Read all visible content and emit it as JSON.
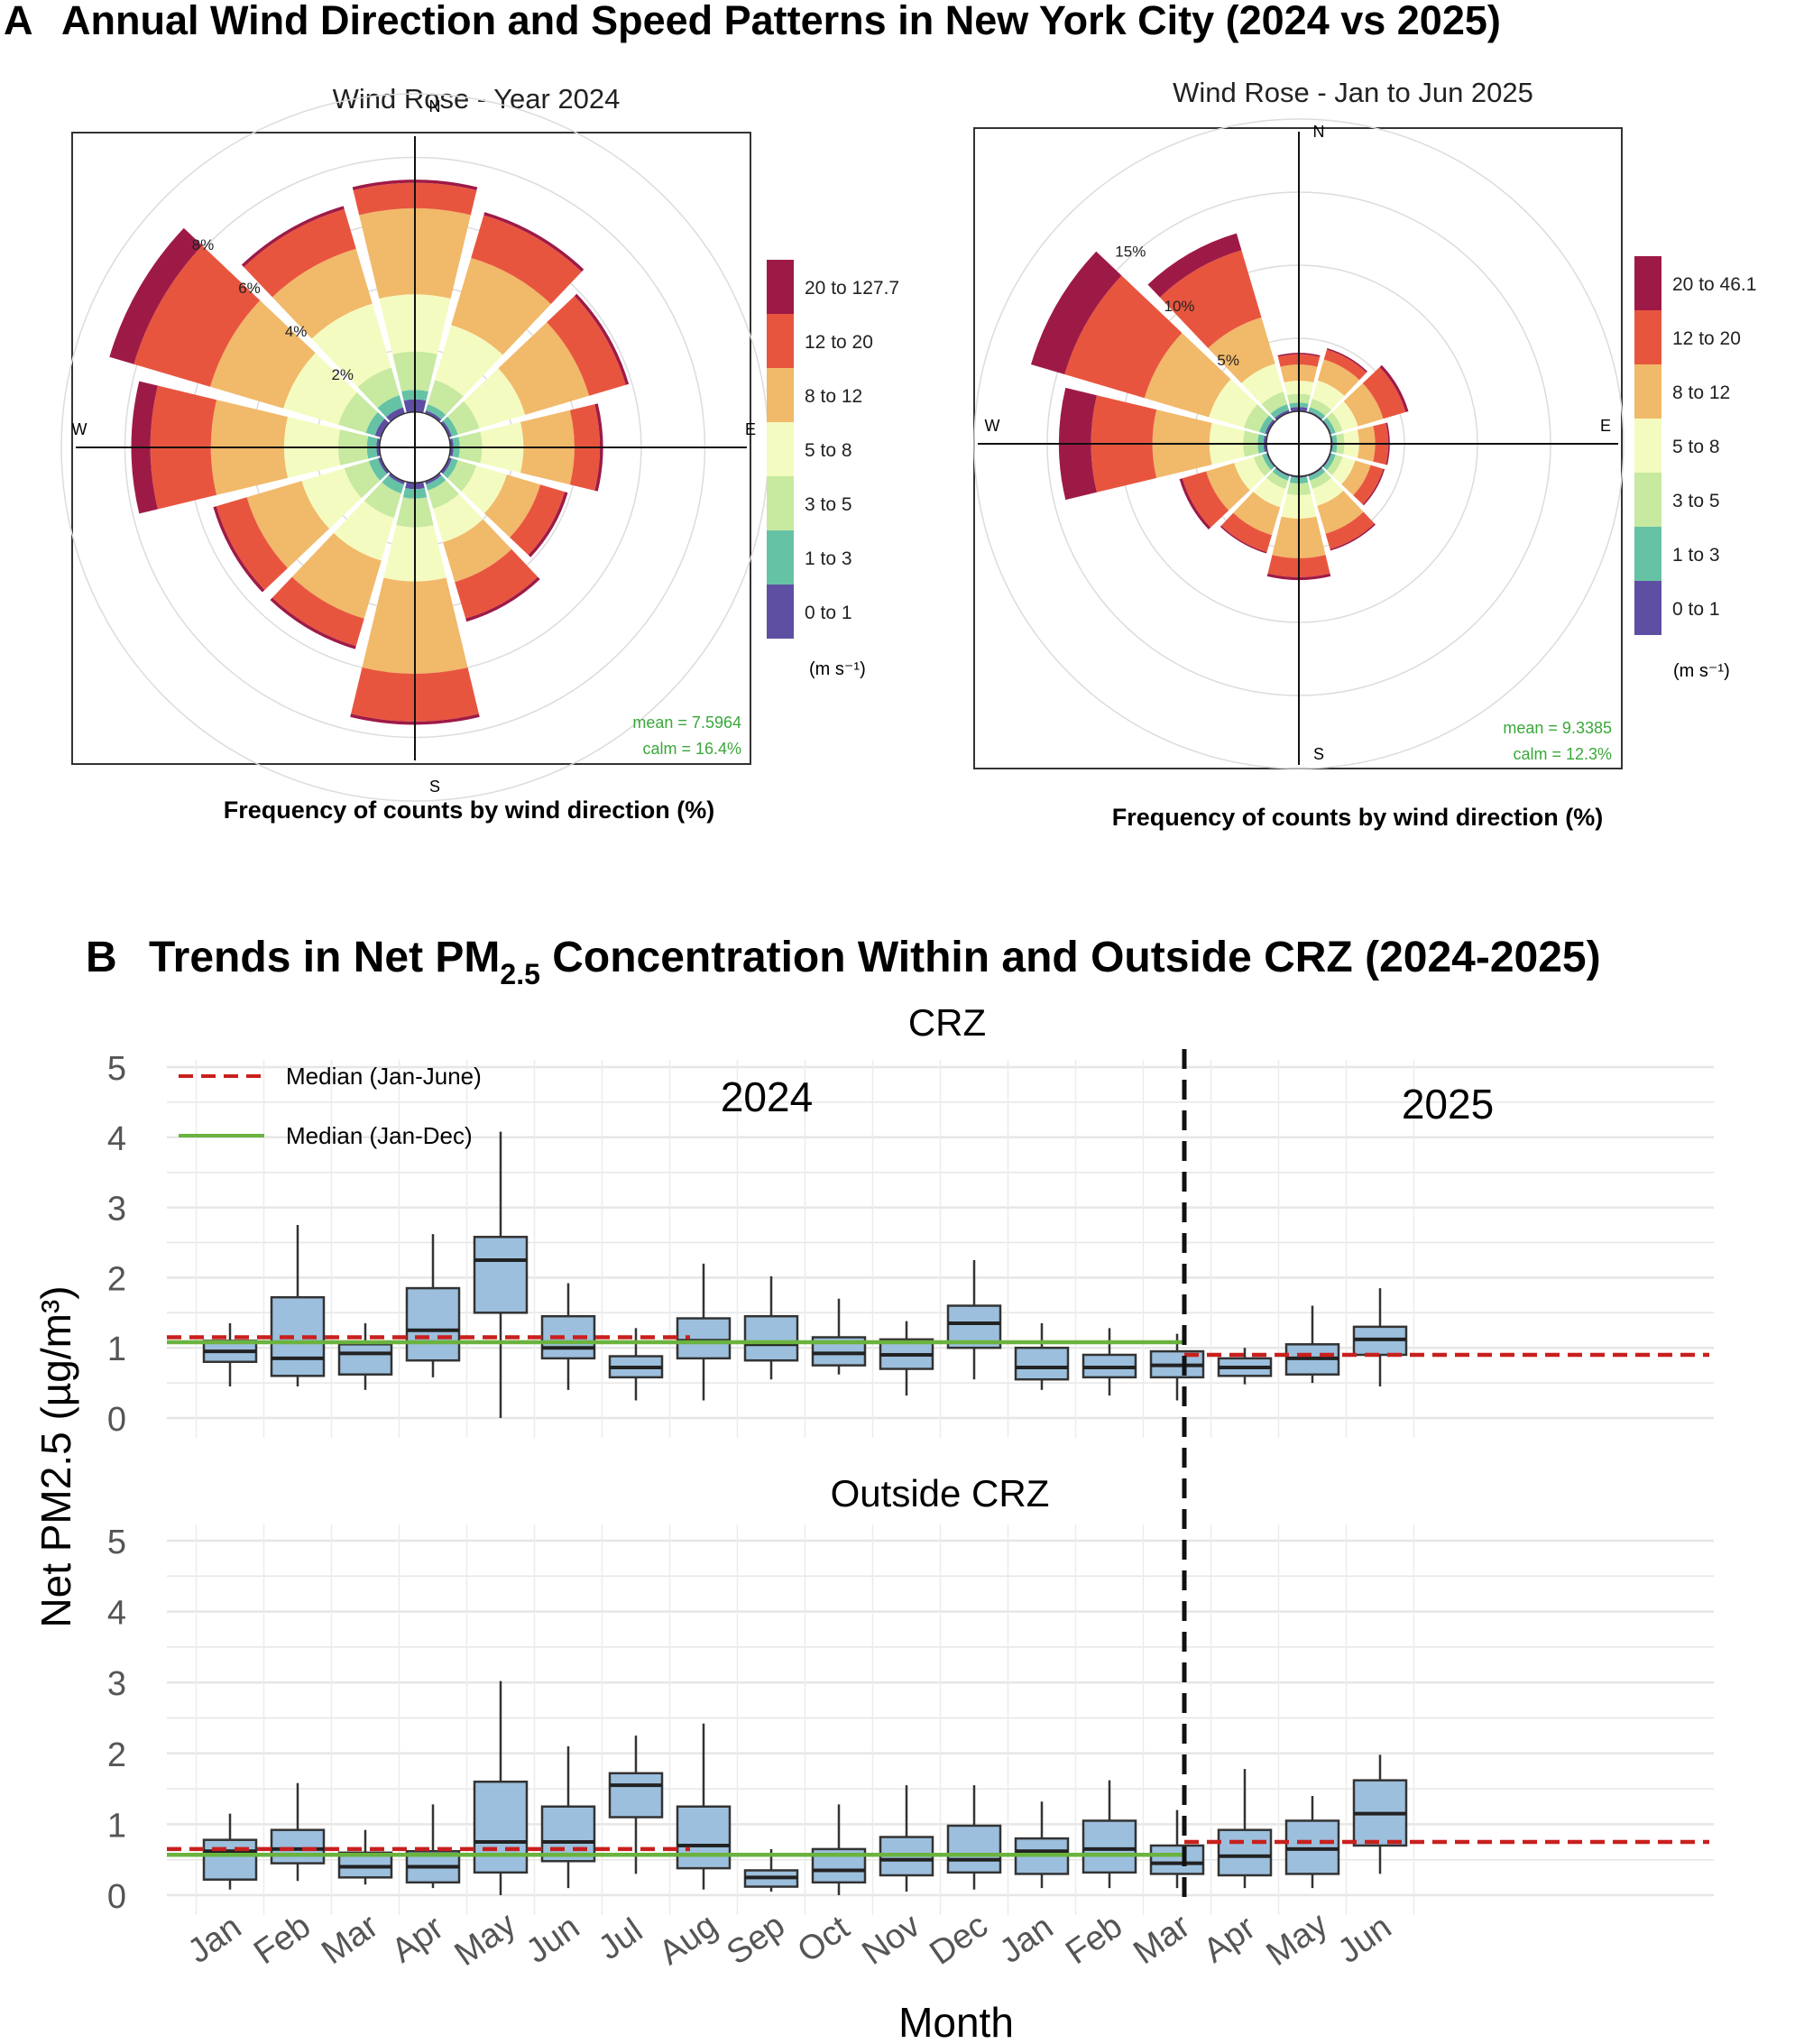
{
  "panel_a": {
    "letter": "A",
    "title": "Annual Wind Direction and Speed Patterns in New York City (2024 vs 2025)"
  },
  "panel_b": {
    "letter": "B",
    "title_pre": "Trends in Net PM",
    "title_sub": "2.5",
    "title_post": " Concentration Within and Outside CRZ (2024-2025)"
  },
  "wind_common": {
    "compass": [
      "N",
      "E",
      "S",
      "W"
    ],
    "xlabel": "Frequency of counts by wind direction (%)",
    "legend_unit": "(m s⁻¹)",
    "palette": [
      "#5e4fa2",
      "#66c2a5",
      "#c7e9a0",
      "#f4fbc0",
      "#f1b96a",
      "#e8553f",
      "#9e1a46"
    ]
  },
  "chart_data": [
    {
      "type": "windrose",
      "title": "Wind Rose - Year 2024",
      "speed_bins": [
        "0 to 1",
        "1 to 3",
        "3 to 5",
        "5 to 8",
        "8 to 12",
        "12 to 20",
        "20 to 127.7"
      ],
      "ring_labels": [
        "2%",
        "4%",
        "6%",
        "8%"
      ],
      "ring_values": [
        2,
        4,
        6,
        8
      ],
      "rmax": 10,
      "mean_text": "mean = 7.5964",
      "calm_text": "calm = 16.4%",
      "directions": [
        0,
        30,
        60,
        90,
        120,
        150,
        180,
        210,
        240,
        270,
        300,
        330
      ],
      "cumulative": [
        [
          0.4,
          0.7,
          1.9,
          3.7,
          6.4,
          7.2,
          7.3
        ],
        [
          0.1,
          0.3,
          1.1,
          2.9,
          5.1,
          6.5,
          6.6
        ],
        [
          0.1,
          0.3,
          1.0,
          2.5,
          4.6,
          5.8,
          5.9
        ],
        [
          0.1,
          0.3,
          1.0,
          2.3,
          3.9,
          4.7,
          4.8
        ],
        [
          0.1,
          0.3,
          0.9,
          1.9,
          3.0,
          3.8,
          3.9
        ],
        [
          0.1,
          0.3,
          0.9,
          2.0,
          3.3,
          4.5,
          4.6
        ],
        [
          0.2,
          0.5,
          1.4,
          3.1,
          6.0,
          7.5,
          7.6
        ],
        [
          0.1,
          0.4,
          1.2,
          2.6,
          4.5,
          5.4,
          5.5
        ],
        [
          0.1,
          0.4,
          1.2,
          2.6,
          4.4,
          5.4,
          5.5
        ],
        [
          0.1,
          0.4,
          1.3,
          3.0,
          5.3,
          7.2,
          7.8
        ],
        [
          0.2,
          0.5,
          1.4,
          3.2,
          5.6,
          8.1,
          8.9
        ],
        [
          0.2,
          0.6,
          1.5,
          3.6,
          5.4,
          6.7,
          6.8
        ]
      ]
    },
    {
      "type": "windrose",
      "title": "Wind Rose - Jan to Jun 2025",
      "speed_bins": [
        "0 to 1",
        "1 to 3",
        "3 to 5",
        "5 to 8",
        "8 to 12",
        "12 to 20",
        "20 to 46.1"
      ],
      "ring_labels": [
        "5%",
        "10%",
        "15%"
      ],
      "ring_values": [
        5,
        10,
        15
      ],
      "rmax": 20,
      "mean_text": "mean = 9.3385",
      "calm_text": "calm = 12.3%",
      "directions": [
        0,
        30,
        60,
        90,
        120,
        150,
        180,
        210,
        240,
        270,
        300,
        330
      ],
      "cumulative": [
        [
          0.3,
          0.6,
          1.2,
          2.1,
          3.2,
          3.9,
          4.0
        ],
        [
          0.1,
          0.4,
          1.0,
          2.3,
          3.8,
          4.5,
          4.6
        ],
        [
          0.1,
          0.4,
          0.9,
          2.0,
          3.8,
          5.4,
          5.6
        ],
        [
          0.1,
          0.4,
          0.9,
          1.9,
          3.0,
          3.9,
          4.0
        ],
        [
          0.1,
          0.4,
          0.9,
          1.8,
          2.9,
          3.8,
          3.9
        ],
        [
          0.1,
          0.4,
          1.0,
          2.2,
          4.2,
          5.3,
          5.4
        ],
        [
          0.1,
          0.5,
          1.3,
          2.9,
          5.6,
          6.9,
          7.1
        ],
        [
          0.1,
          0.4,
          1.0,
          2.3,
          4.3,
          5.5,
          5.6
        ],
        [
          0.1,
          0.4,
          1.0,
          2.4,
          4.4,
          6.1,
          6.3
        ],
        [
          0.2,
          0.6,
          1.6,
          3.9,
          7.8,
          12.0,
          14.2
        ],
        [
          0.2,
          0.6,
          1.7,
          4.2,
          8.8,
          14.5,
          16.9
        ],
        [
          0.2,
          0.6,
          1.5,
          3.5,
          6.8,
          11.6,
          12.8
        ]
      ]
    },
    {
      "type": "boxplot",
      "panel_title": "CRZ",
      "year_labels": [
        "2024",
        "2025"
      ],
      "legend": [
        "Median  (Jan-June)",
        "Median  (Jan-Dec)"
      ],
      "ylabel": "Net PM2.5 (µg/m³)",
      "ylim": [
        0,
        5
      ],
      "yticks": [
        "0",
        "1",
        "2",
        "3",
        "4",
        "5"
      ],
      "ref_lines": {
        "jan_jun_2024": 1.15,
        "jan_dec_2024": 1.08,
        "jan_jun_2025": 0.9
      },
      "boxes": [
        {
          "month": "Jan",
          "year": 2024,
          "min": 0.45,
          "q1": 0.8,
          "median": 0.95,
          "q3": 1.1,
          "max": 1.35
        },
        {
          "month": "Feb",
          "year": 2024,
          "min": 0.45,
          "q1": 0.6,
          "median": 0.85,
          "q3": 1.72,
          "max": 2.75
        },
        {
          "month": "Mar",
          "year": 2024,
          "min": 0.4,
          "q1": 0.62,
          "median": 0.92,
          "q3": 1.05,
          "max": 1.35
        },
        {
          "month": "Apr",
          "year": 2024,
          "min": 0.58,
          "q1": 0.82,
          "median": 1.25,
          "q3": 1.85,
          "max": 2.62
        },
        {
          "month": "May",
          "year": 2024,
          "min": 0.0,
          "q1": 1.5,
          "median": 2.25,
          "q3": 2.58,
          "max": 4.08
        },
        {
          "month": "Jun",
          "year": 2024,
          "min": 0.4,
          "q1": 0.85,
          "median": 1.0,
          "q3": 1.45,
          "max": 1.92
        },
        {
          "month": "Jul",
          "year": 2024,
          "min": 0.25,
          "q1": 0.58,
          "median": 0.72,
          "q3": 0.88,
          "max": 1.28
        },
        {
          "month": "Aug",
          "year": 2024,
          "min": 0.25,
          "q1": 0.85,
          "median": 1.1,
          "q3": 1.42,
          "max": 2.2
        },
        {
          "month": "Sep",
          "year": 2024,
          "min": 0.55,
          "q1": 0.82,
          "median": 1.05,
          "q3": 1.45,
          "max": 2.02
        },
        {
          "month": "Oct",
          "year": 2024,
          "min": 0.62,
          "q1": 0.75,
          "median": 0.92,
          "q3": 1.15,
          "max": 1.7
        },
        {
          "month": "Nov",
          "year": 2024,
          "min": 0.32,
          "q1": 0.7,
          "median": 0.9,
          "q3": 1.12,
          "max": 1.38
        },
        {
          "month": "Dec",
          "year": 2024,
          "min": 0.55,
          "q1": 1.0,
          "median": 1.35,
          "q3": 1.6,
          "max": 2.25
        },
        {
          "month": "Jan",
          "year": 2025,
          "min": 0.4,
          "q1": 0.55,
          "median": 0.72,
          "q3": 1.0,
          "max": 1.35
        },
        {
          "month": "Feb",
          "year": 2025,
          "min": 0.32,
          "q1": 0.58,
          "median": 0.72,
          "q3": 0.9,
          "max": 1.28
        },
        {
          "month": "Mar",
          "year": 2025,
          "min": 0.25,
          "q1": 0.58,
          "median": 0.75,
          "q3": 0.95,
          "max": 1.2
        },
        {
          "month": "Apr",
          "year": 2025,
          "min": 0.48,
          "q1": 0.6,
          "median": 0.72,
          "q3": 0.85,
          "max": 1.0
        },
        {
          "month": "May",
          "year": 2025,
          "min": 0.5,
          "q1": 0.62,
          "median": 0.85,
          "q3": 1.05,
          "max": 1.6
        },
        {
          "month": "Jun",
          "year": 2025,
          "min": 0.45,
          "q1": 0.9,
          "median": 1.12,
          "q3": 1.3,
          "max": 1.85
        }
      ]
    },
    {
      "type": "boxplot",
      "panel_title": "Outside CRZ",
      "xlabel": "Month",
      "ylim": [
        0,
        5
      ],
      "yticks": [
        "0",
        "1",
        "2",
        "3",
        "4",
        "5"
      ],
      "ref_lines": {
        "jan_jun_2024": 0.65,
        "jan_dec_2024": 0.57,
        "jan_jun_2025": 0.75
      },
      "boxes": [
        {
          "month": "Jan",
          "year": 2024,
          "min": 0.08,
          "q1": 0.22,
          "median": 0.62,
          "q3": 0.78,
          "max": 1.15
        },
        {
          "month": "Feb",
          "year": 2024,
          "min": 0.2,
          "q1": 0.45,
          "median": 0.65,
          "q3": 0.92,
          "max": 1.58
        },
        {
          "month": "Mar",
          "year": 2024,
          "min": 0.15,
          "q1": 0.25,
          "median": 0.4,
          "q3": 0.6,
          "max": 0.92
        },
        {
          "month": "Apr",
          "year": 2024,
          "min": 0.1,
          "q1": 0.18,
          "median": 0.4,
          "q3": 0.62,
          "max": 1.28
        },
        {
          "month": "May",
          "year": 2024,
          "min": 0.0,
          "q1": 0.32,
          "median": 0.75,
          "q3": 1.6,
          "max": 3.02
        },
        {
          "month": "Jun",
          "year": 2024,
          "min": 0.1,
          "q1": 0.48,
          "median": 0.75,
          "q3": 1.25,
          "max": 2.1
        },
        {
          "month": "Jul",
          "year": 2024,
          "min": 0.3,
          "q1": 1.1,
          "median": 1.55,
          "q3": 1.72,
          "max": 2.25
        },
        {
          "month": "Aug",
          "year": 2024,
          "min": 0.08,
          "q1": 0.38,
          "median": 0.7,
          "q3": 1.25,
          "max": 2.42
        },
        {
          "month": "Sep",
          "year": 2024,
          "min": 0.05,
          "q1": 0.12,
          "median": 0.25,
          "q3": 0.35,
          "max": 0.65
        },
        {
          "month": "Oct",
          "year": 2024,
          "min": 0.0,
          "q1": 0.18,
          "median": 0.35,
          "q3": 0.65,
          "max": 1.28
        },
        {
          "month": "Nov",
          "year": 2024,
          "min": 0.05,
          "q1": 0.28,
          "median": 0.5,
          "q3": 0.82,
          "max": 1.55
        },
        {
          "month": "Dec",
          "year": 2024,
          "min": 0.08,
          "q1": 0.32,
          "median": 0.5,
          "q3": 0.98,
          "max": 1.55
        },
        {
          "month": "Jan",
          "year": 2025,
          "min": 0.1,
          "q1": 0.3,
          "median": 0.62,
          "q3": 0.8,
          "max": 1.32
        },
        {
          "month": "Feb",
          "year": 2025,
          "min": 0.1,
          "q1": 0.32,
          "median": 0.65,
          "q3": 1.05,
          "max": 1.62
        },
        {
          "month": "Mar",
          "year": 2025,
          "min": 0.1,
          "q1": 0.3,
          "median": 0.45,
          "q3": 0.7,
          "max": 1.2
        },
        {
          "month": "Apr",
          "year": 2025,
          "min": 0.1,
          "q1": 0.28,
          "median": 0.55,
          "q3": 0.92,
          "max": 1.78
        },
        {
          "month": "May",
          "year": 2025,
          "min": 0.1,
          "q1": 0.3,
          "median": 0.65,
          "q3": 1.05,
          "max": 1.4
        },
        {
          "month": "Jun",
          "year": 2025,
          "min": 0.3,
          "q1": 0.7,
          "median": 1.15,
          "q3": 1.62,
          "max": 1.98
        }
      ]
    }
  ]
}
